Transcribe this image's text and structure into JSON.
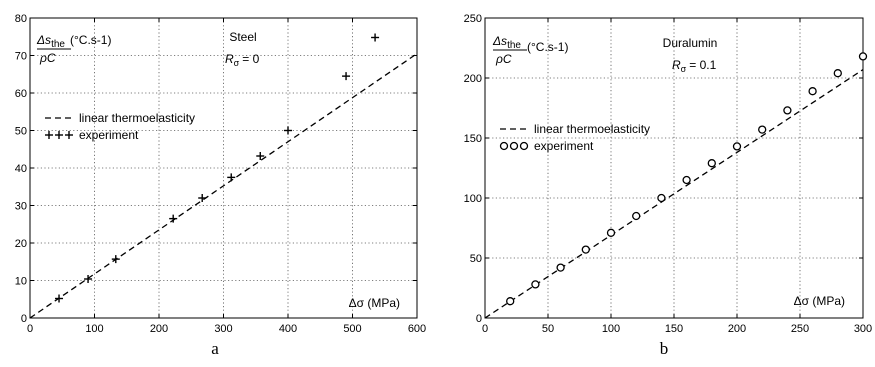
{
  "chart_data": [
    {
      "type": "scatter",
      "panel_label": "a",
      "material": "Steel",
      "ratio_label": "R",
      "ratio_sub": "σ",
      "ratio_value": "= 0",
      "ylabel": {
        "numerator": "Δs",
        "numerator_sub": "the",
        "denominator": "ρC",
        "unit": "(°C.s-1)"
      },
      "xlabel": "Δσ (MPa)",
      "xlim": [
        0,
        600
      ],
      "ylim": [
        0,
        80
      ],
      "xticks": [
        "0",
        "100",
        "200",
        "300",
        "400",
        "500",
        "600"
      ],
      "yticks": [
        "0",
        "10",
        "20",
        "30",
        "40",
        "50",
        "60",
        "70",
        "80"
      ],
      "grid": true,
      "legend_position": "middle-left",
      "legend": {
        "line": "linear thermoelasticity",
        "points": "experiment"
      },
      "marker": "plus",
      "series": [
        {
          "kind": "line",
          "x": [
            0,
            600
          ],
          "y": [
            0,
            70.5
          ]
        },
        {
          "kind": "points",
          "x": [
            45,
            90,
            133,
            222,
            267,
            312,
            357,
            400,
            490,
            535
          ],
          "y": [
            5.2,
            10.4,
            15.7,
            26.5,
            32.0,
            37.5,
            43.2,
            50.0,
            64.5,
            74.8
          ]
        }
      ]
    },
    {
      "type": "scatter",
      "panel_label": "b",
      "material": "Duralumin",
      "ratio_label": "R",
      "ratio_sub": "σ",
      "ratio_value": "= 0.1",
      "ylabel": {
        "numerator": "Δs",
        "numerator_sub": "the",
        "denominator": "ρC",
        "unit": "(°C.s-1)"
      },
      "xlabel": "Δσ (MPa)",
      "xlim": [
        0,
        300
      ],
      "ylim": [
        0,
        250
      ],
      "xticks": [
        "0",
        "50",
        "100",
        "150",
        "200",
        "250",
        "300"
      ],
      "yticks": [
        "0",
        "50",
        "100",
        "150",
        "200",
        "250"
      ],
      "grid": true,
      "legend_position": "middle-left",
      "legend": {
        "line": "linear thermoelasticity",
        "points": "experiment"
      },
      "marker": "circle",
      "series": [
        {
          "kind": "line",
          "x": [
            0,
            300
          ],
          "y": [
            0,
            207
          ]
        },
        {
          "kind": "points",
          "x": [
            20,
            40,
            60,
            80,
            100,
            120,
            140,
            160,
            180,
            200,
            220,
            240,
            260,
            280,
            300
          ],
          "y": [
            14,
            28,
            42,
            57,
            71,
            85,
            100,
            115,
            129,
            143,
            157,
            173,
            189,
            204,
            218
          ]
        }
      ]
    }
  ]
}
